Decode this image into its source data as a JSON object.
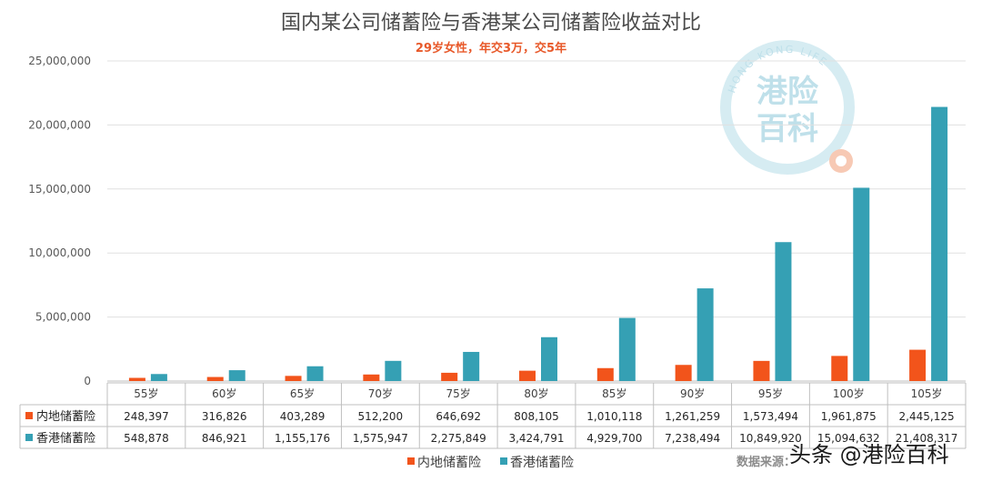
{
  "chart_data": {
    "type": "bar",
    "title": "国内某公司储蓄险与香港某公司储蓄险收益对比",
    "subtitle": "29岁女性，年交3万，交5年",
    "categories": [
      "55岁",
      "60岁",
      "65岁",
      "70岁",
      "75岁",
      "80岁",
      "85岁",
      "90岁",
      "95岁",
      "100岁",
      "105岁"
    ],
    "series": [
      {
        "name": "内地储蓄险",
        "color": "#f2541b",
        "values": [
          248397,
          316826,
          403289,
          512200,
          646692,
          808105,
          1010118,
          1261259,
          1573494,
          1961875,
          2445125
        ],
        "labels": [
          "248,397",
          "316,826",
          "403,289",
          "512,200",
          "646,692",
          "808,105",
          "1,010,118",
          "1,261,259",
          "1,573,494",
          "1,961,875",
          "2,445,125"
        ]
      },
      {
        "name": "香港储蓄险",
        "color": "#35a0b4",
        "values": [
          548878,
          846921,
          1155176,
          1575947,
          2275849,
          3424791,
          4929700,
          7238494,
          10849920,
          15094632,
          21408317
        ],
        "labels": [
          "548,878",
          "846,921",
          "1,155,176",
          "1,575,947",
          "2,275,849",
          "3,424,791",
          "4,929,700",
          "7,238,494",
          "10,849,920",
          "15,094,632",
          "21,408,317"
        ]
      }
    ],
    "ylim": [
      0,
      25000000
    ],
    "yticks": [
      0,
      5000000,
      10000000,
      15000000,
      20000000,
      25000000
    ],
    "ytick_labels": [
      "0",
      "5,000,000",
      "10,000,000",
      "15,000,000",
      "20,000,000",
      "25,000,000"
    ],
    "grid": true,
    "legend": "bottom",
    "data_table": true,
    "source_note": "数据来源：",
    "logo": {
      "main_line1": "港险",
      "main_line2": "百科",
      "arc": "HONG KONG LIFE"
    },
    "watermark": "头条 @港险百科"
  }
}
